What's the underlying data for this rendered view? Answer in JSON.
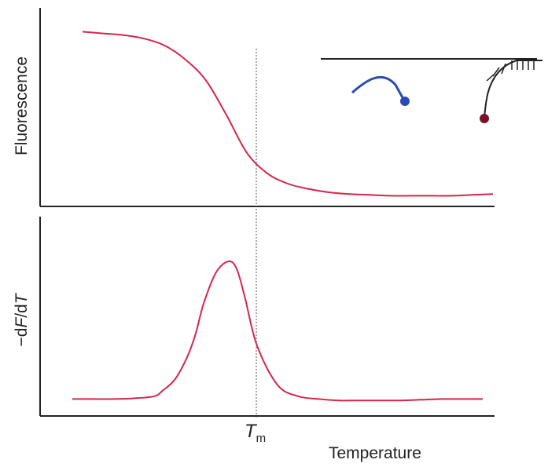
{
  "chart_data": [
    {
      "type": "line",
      "panel": "top",
      "ylabel": "Fluorescence",
      "xlabel": "",
      "series": [
        {
          "color": "#d6264a",
          "x": [
            0.0,
            0.05,
            0.1,
            0.15,
            0.2,
            0.25,
            0.3,
            0.35,
            0.4,
            0.45,
            0.5,
            0.55,
            0.6,
            0.65,
            0.7,
            0.75,
            0.8,
            0.85,
            0.9,
            0.95,
            1.0
          ],
          "y": [
            0.98,
            0.97,
            0.96,
            0.94,
            0.9,
            0.82,
            0.7,
            0.5,
            0.28,
            0.16,
            0.1,
            0.07,
            0.05,
            0.04,
            0.035,
            0.03,
            0.03,
            0.03,
            0.03,
            0.035,
            0.04
          ]
        }
      ],
      "inset": {
        "description_items": [
          "blue-probe-free",
          "dark-red-probe-bound-to-strand"
        ],
        "colors": {
          "free_probe": "#2a4bb0",
          "bound_probe_dot": "#7a1028",
          "strand": "#222222"
        }
      }
    },
    {
      "type": "line",
      "panel": "bottom",
      "ylabel": {
        "prefix": "−d",
        "f": "F",
        "mid": "/d",
        "t": "T"
      },
      "xlabel": "Temperature",
      "series": [
        {
          "color": "#d6264a",
          "x": [
            0.0,
            0.05,
            0.1,
            0.15,
            0.2,
            0.22,
            0.25,
            0.28,
            0.3,
            0.32,
            0.35,
            0.38,
            0.4,
            0.42,
            0.45,
            0.5,
            0.55,
            0.6,
            0.65,
            0.7,
            0.75,
            0.8,
            0.85,
            0.9,
            0.95,
            1.0
          ],
          "y": [
            0.02,
            0.02,
            0.02,
            0.025,
            0.04,
            0.08,
            0.16,
            0.32,
            0.48,
            0.7,
            0.92,
            1.0,
            0.95,
            0.75,
            0.4,
            0.12,
            0.04,
            0.02,
            0.01,
            0.01,
            0.01,
            0.01,
            0.015,
            0.02,
            0.02,
            0.02
          ]
        }
      ]
    }
  ],
  "annotations": {
    "tm": {
      "main": "T",
      "sub": "m",
      "x": 0.38
    },
    "x_title": "Temperature",
    "y_title_top": "Fluorescence"
  },
  "colors": {
    "curve": "#d6264a",
    "axis": "#222222",
    "guide": "#555555"
  }
}
